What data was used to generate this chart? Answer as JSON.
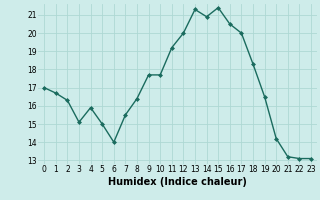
{
  "x": [
    0,
    1,
    2,
    3,
    4,
    5,
    6,
    7,
    8,
    9,
    10,
    11,
    12,
    13,
    14,
    15,
    16,
    17,
    18,
    19,
    20,
    21,
    22,
    23
  ],
  "y": [
    17,
    16.7,
    16.3,
    15.1,
    15.9,
    15.0,
    14.0,
    15.5,
    16.4,
    17.7,
    17.7,
    19.2,
    20.0,
    21.3,
    20.9,
    21.4,
    20.5,
    20.0,
    18.3,
    16.5,
    14.2,
    13.2,
    13.1,
    13.1
  ],
  "line_color": "#1a6b5e",
  "marker": "D",
  "marker_size": 2.0,
  "background_color": "#ceecea",
  "grid_color": "#aed8d4",
  "xlabel": "Humidex (Indice chaleur)",
  "ylim": [
    12.8,
    21.6
  ],
  "xlim": [
    -0.5,
    23.5
  ],
  "yticks": [
    13,
    14,
    15,
    16,
    17,
    18,
    19,
    20,
    21
  ],
  "xticks": [
    0,
    1,
    2,
    3,
    4,
    5,
    6,
    7,
    8,
    9,
    10,
    11,
    12,
    13,
    14,
    15,
    16,
    17,
    18,
    19,
    20,
    21,
    22,
    23
  ],
  "tick_fontsize": 5.5,
  "xlabel_fontsize": 7.0,
  "linewidth": 1.0
}
